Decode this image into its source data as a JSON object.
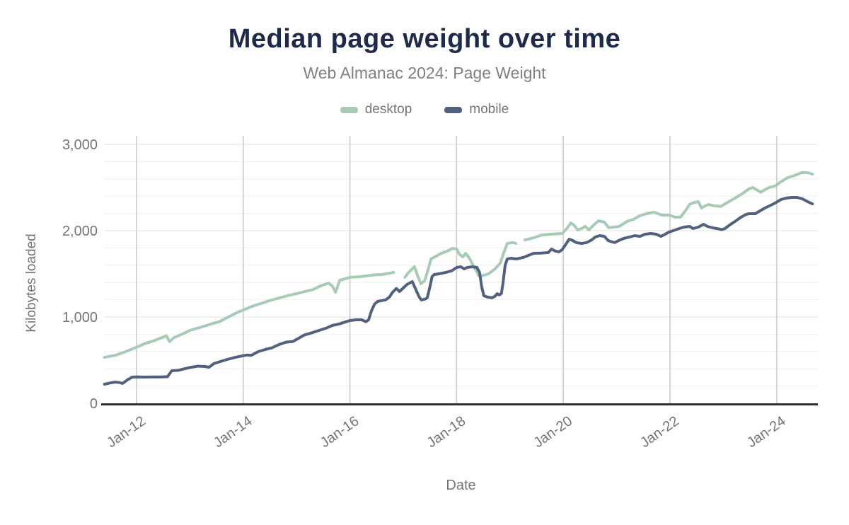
{
  "chart": {
    "title": "Median page weight over time",
    "subtitle": "Web Almanac 2024: Page Weight"
  },
  "chart_data": {
    "type": "line",
    "title": "Median page weight over time",
    "subtitle": "Web Almanac 2024: Page Weight",
    "xlabel": "Date",
    "ylabel": "Kilobytes loaded",
    "unit": "KB",
    "xlim": [
      2011.4,
      2024.78
    ],
    "ylim": [
      0,
      3000
    ],
    "x_ticks": [
      {
        "label": "Jan-12",
        "t": 2012
      },
      {
        "label": "Jan-14",
        "t": 2014
      },
      {
        "label": "Jan-16",
        "t": 2016
      },
      {
        "label": "Jan-18",
        "t": 2018
      },
      {
        "label": "Jan-20",
        "t": 2020
      },
      {
        "label": "Jan-22",
        "t": 2022
      },
      {
        "label": "Jan-24",
        "t": 2024
      }
    ],
    "y_ticks": [
      {
        "label": "0",
        "value": 0
      },
      {
        "label": "1,000",
        "value": 1000
      },
      {
        "label": "2,000",
        "value": 2000
      },
      {
        "label": "3,000",
        "value": 3000
      }
    ],
    "grid": {
      "vertical_at_x_ticks": true,
      "horizontal_step": 200,
      "legend_position": "top-center",
      "x_label_rotation": -35
    },
    "style": {
      "title_color": "#1e2a4a",
      "subtitle_color": "#808080",
      "axis_text_color": "#757575",
      "vertical_gridline_color": "#cccccc",
      "major_gridline_color": "#e2e2e2",
      "minor_gridline_color": "#efefef",
      "baseline_color": "#2f2f2f",
      "background": "#ffffff"
    },
    "series": [
      {
        "name": "desktop",
        "color": "#a8cbb6",
        "points": [
          [
            2011.4,
            533
          ],
          [
            2011.5,
            545
          ],
          [
            2011.6,
            555
          ],
          [
            2011.76,
            590
          ],
          [
            2011.9,
            625
          ],
          [
            2012.0,
            650
          ],
          [
            2012.15,
            690
          ],
          [
            2012.3,
            720
          ],
          [
            2012.45,
            755
          ],
          [
            2012.56,
            780
          ],
          [
            2012.62,
            715
          ],
          [
            2012.7,
            760
          ],
          [
            2012.85,
            800
          ],
          [
            2013.0,
            845
          ],
          [
            2013.2,
            880
          ],
          [
            2013.4,
            920
          ],
          [
            2013.55,
            945
          ],
          [
            2013.75,
            1010
          ],
          [
            2013.9,
            1055
          ],
          [
            2014.0,
            1080
          ],
          [
            2014.15,
            1120
          ],
          [
            2014.3,
            1150
          ],
          [
            2014.5,
            1190
          ],
          [
            2014.7,
            1225
          ],
          [
            2014.85,
            1250
          ],
          [
            2015.0,
            1270
          ],
          [
            2015.15,
            1295
          ],
          [
            2015.3,
            1315
          ],
          [
            2015.45,
            1360
          ],
          [
            2015.6,
            1393
          ],
          [
            2015.67,
            1360
          ],
          [
            2015.73,
            1287
          ],
          [
            2015.81,
            1426
          ],
          [
            2015.9,
            1440
          ],
          [
            2016.0,
            1459
          ],
          [
            2016.15,
            1465
          ],
          [
            2016.3,
            1475
          ],
          [
            2016.45,
            1488
          ],
          [
            2016.6,
            1492
          ],
          [
            2016.72,
            1505
          ],
          [
            2016.82,
            1516
          ],
          null,
          [
            2017.03,
            1459
          ],
          [
            2017.1,
            1516
          ],
          [
            2017.21,
            1582
          ],
          [
            2017.27,
            1475
          ],
          [
            2017.33,
            1385
          ],
          [
            2017.4,
            1420
          ],
          [
            2017.47,
            1557
          ],
          [
            2017.52,
            1672
          ],
          [
            2017.6,
            1700
          ],
          [
            2017.72,
            1740
          ],
          [
            2017.85,
            1770
          ],
          [
            2017.92,
            1795
          ],
          [
            2018.0,
            1787
          ],
          [
            2018.06,
            1720
          ],
          [
            2018.12,
            1697
          ],
          [
            2018.17,
            1738
          ],
          [
            2018.24,
            1680
          ],
          [
            2018.33,
            1574
          ],
          [
            2018.42,
            1475
          ],
          [
            2018.5,
            1480
          ],
          [
            2018.6,
            1500
          ],
          [
            2018.72,
            1557
          ],
          [
            2018.82,
            1625
          ],
          [
            2018.88,
            1740
          ],
          [
            2018.95,
            1852
          ],
          [
            2019.05,
            1862
          ],
          [
            2019.11,
            1852
          ],
          null,
          [
            2019.28,
            1893
          ],
          [
            2019.45,
            1918
          ],
          [
            2019.6,
            1950
          ],
          [
            2019.78,
            1960
          ],
          [
            2019.98,
            1967
          ],
          [
            2020.08,
            2035
          ],
          [
            2020.14,
            2090
          ],
          [
            2020.2,
            2065
          ],
          [
            2020.27,
            2008
          ],
          [
            2020.34,
            2025
          ],
          [
            2020.41,
            2050
          ],
          [
            2020.48,
            2008
          ],
          [
            2020.57,
            2066
          ],
          [
            2020.66,
            2115
          ],
          [
            2020.77,
            2098
          ],
          [
            2020.85,
            2035
          ],
          [
            2020.96,
            2042
          ],
          [
            2021.05,
            2050
          ],
          [
            2021.2,
            2110
          ],
          [
            2021.32,
            2132
          ],
          [
            2021.43,
            2172
          ],
          [
            2021.56,
            2197
          ],
          [
            2021.7,
            2213
          ],
          [
            2021.85,
            2180
          ],
          [
            2021.98,
            2180
          ],
          [
            2022.1,
            2156
          ],
          [
            2022.2,
            2158
          ],
          [
            2022.3,
            2240
          ],
          [
            2022.37,
            2305
          ],
          [
            2022.46,
            2328
          ],
          [
            2022.53,
            2336
          ],
          [
            2022.59,
            2262
          ],
          [
            2022.66,
            2288
          ],
          [
            2022.72,
            2303
          ],
          [
            2022.83,
            2288
          ],
          [
            2022.95,
            2280
          ],
          [
            2023.08,
            2328
          ],
          [
            2023.22,
            2377
          ],
          [
            2023.35,
            2426
          ],
          [
            2023.48,
            2484
          ],
          [
            2023.55,
            2500
          ],
          [
            2023.62,
            2475
          ],
          [
            2023.7,
            2445
          ],
          [
            2023.78,
            2475
          ],
          [
            2023.86,
            2500
          ],
          [
            2023.97,
            2517
          ],
          [
            2024.08,
            2566
          ],
          [
            2024.21,
            2615
          ],
          [
            2024.34,
            2640
          ],
          [
            2024.47,
            2672
          ],
          [
            2024.58,
            2672
          ],
          [
            2024.67,
            2655
          ]
        ]
      },
      {
        "name": "mobile",
        "color": "#51627f",
        "points": [
          [
            2011.4,
            221
          ],
          [
            2011.5,
            235
          ],
          [
            2011.6,
            246
          ],
          [
            2011.68,
            240
          ],
          [
            2011.74,
            230
          ],
          [
            2011.83,
            272
          ],
          [
            2011.92,
            303
          ],
          [
            2012.0,
            306
          ],
          [
            2012.15,
            304
          ],
          [
            2012.3,
            306
          ],
          [
            2012.45,
            305
          ],
          [
            2012.58,
            308
          ],
          [
            2012.66,
            377
          ],
          [
            2012.78,
            382
          ],
          [
            2012.9,
            400
          ],
          [
            2013.0,
            415
          ],
          [
            2013.15,
            430
          ],
          [
            2013.28,
            426
          ],
          [
            2013.36,
            418
          ],
          [
            2013.45,
            460
          ],
          [
            2013.57,
            484
          ],
          [
            2013.7,
            508
          ],
          [
            2013.85,
            532
          ],
          [
            2014.0,
            552
          ],
          [
            2014.08,
            560
          ],
          [
            2014.15,
            556
          ],
          [
            2014.28,
            598
          ],
          [
            2014.41,
            623
          ],
          [
            2014.54,
            643
          ],
          [
            2014.67,
            680
          ],
          [
            2014.8,
            708
          ],
          [
            2014.93,
            716
          ],
          [
            2015.05,
            757
          ],
          [
            2015.14,
            790
          ],
          [
            2015.25,
            810
          ],
          [
            2015.4,
            840
          ],
          [
            2015.55,
            870
          ],
          [
            2015.67,
            902
          ],
          [
            2015.8,
            920
          ],
          [
            2015.93,
            945
          ],
          [
            2016.0,
            959
          ],
          [
            2016.12,
            967
          ],
          [
            2016.22,
            967
          ],
          [
            2016.3,
            945
          ],
          [
            2016.35,
            967
          ],
          [
            2016.4,
            1066
          ],
          [
            2016.46,
            1148
          ],
          [
            2016.52,
            1180
          ],
          [
            2016.6,
            1190
          ],
          [
            2016.67,
            1198
          ],
          [
            2016.74,
            1230
          ],
          [
            2016.8,
            1287
          ],
          [
            2016.87,
            1330
          ],
          [
            2016.93,
            1295
          ],
          [
            2017.0,
            1336
          ],
          [
            2017.07,
            1377
          ],
          [
            2017.17,
            1410
          ],
          [
            2017.24,
            1311
          ],
          [
            2017.3,
            1230
          ],
          [
            2017.34,
            1197
          ],
          [
            2017.41,
            1207
          ],
          [
            2017.45,
            1222
          ],
          [
            2017.5,
            1352
          ],
          [
            2017.54,
            1467
          ],
          [
            2017.58,
            1492
          ],
          [
            2017.67,
            1500
          ],
          [
            2017.8,
            1517
          ],
          [
            2017.9,
            1533
          ],
          [
            2018.0,
            1574
          ],
          [
            2018.08,
            1582
          ],
          [
            2018.14,
            1557
          ],
          [
            2018.2,
            1574
          ],
          [
            2018.3,
            1582
          ],
          [
            2018.38,
            1574
          ],
          [
            2018.43,
            1516
          ],
          [
            2018.47,
            1352
          ],
          [
            2018.51,
            1246
          ],
          [
            2018.58,
            1230
          ],
          [
            2018.66,
            1222
          ],
          [
            2018.72,
            1240
          ],
          [
            2018.76,
            1270
          ],
          [
            2018.8,
            1255
          ],
          [
            2018.84,
            1272
          ],
          [
            2018.87,
            1395
          ],
          [
            2018.91,
            1600
          ],
          [
            2018.95,
            1672
          ],
          [
            2019.02,
            1680
          ],
          [
            2019.12,
            1672
          ],
          [
            2019.25,
            1690
          ],
          [
            2019.38,
            1722
          ],
          [
            2019.45,
            1738
          ],
          [
            2019.58,
            1740
          ],
          [
            2019.72,
            1747
          ],
          [
            2019.78,
            1787
          ],
          [
            2019.85,
            1763
          ],
          [
            2019.92,
            1755
          ],
          [
            2019.98,
            1780
          ],
          [
            2020.05,
            1845
          ],
          [
            2020.11,
            1902
          ],
          [
            2020.18,
            1885
          ],
          [
            2020.24,
            1862
          ],
          [
            2020.34,
            1852
          ],
          [
            2020.44,
            1862
          ],
          [
            2020.53,
            1893
          ],
          [
            2020.6,
            1926
          ],
          [
            2020.68,
            1943
          ],
          [
            2020.77,
            1934
          ],
          [
            2020.84,
            1886
          ],
          [
            2020.91,
            1870
          ],
          [
            2020.97,
            1862
          ],
          [
            2021.04,
            1886
          ],
          [
            2021.13,
            1910
          ],
          [
            2021.24,
            1926
          ],
          [
            2021.34,
            1943
          ],
          [
            2021.44,
            1934
          ],
          [
            2021.53,
            1959
          ],
          [
            2021.64,
            1967
          ],
          [
            2021.74,
            1959
          ],
          [
            2021.83,
            1934
          ],
          [
            2021.91,
            1959
          ],
          [
            2021.98,
            1984
          ],
          [
            2022.1,
            2008
          ],
          [
            2022.17,
            2025
          ],
          [
            2022.26,
            2041
          ],
          [
            2022.37,
            2049
          ],
          [
            2022.43,
            2025
          ],
          [
            2022.53,
            2041
          ],
          [
            2022.63,
            2074
          ],
          [
            2022.7,
            2049
          ],
          [
            2022.8,
            2033
          ],
          [
            2022.9,
            2022
          ],
          [
            2022.97,
            2012
          ],
          [
            2023.03,
            2025
          ],
          [
            2023.12,
            2066
          ],
          [
            2023.22,
            2107
          ],
          [
            2023.33,
            2156
          ],
          [
            2023.43,
            2189
          ],
          [
            2023.49,
            2197
          ],
          [
            2023.6,
            2197
          ],
          [
            2023.69,
            2230
          ],
          [
            2023.78,
            2262
          ],
          [
            2023.89,
            2295
          ],
          [
            2023.97,
            2320
          ],
          [
            2024.08,
            2361
          ],
          [
            2024.18,
            2377
          ],
          [
            2024.28,
            2385
          ],
          [
            2024.38,
            2385
          ],
          [
            2024.48,
            2369
          ],
          [
            2024.58,
            2336
          ],
          [
            2024.67,
            2310
          ]
        ]
      }
    ]
  }
}
